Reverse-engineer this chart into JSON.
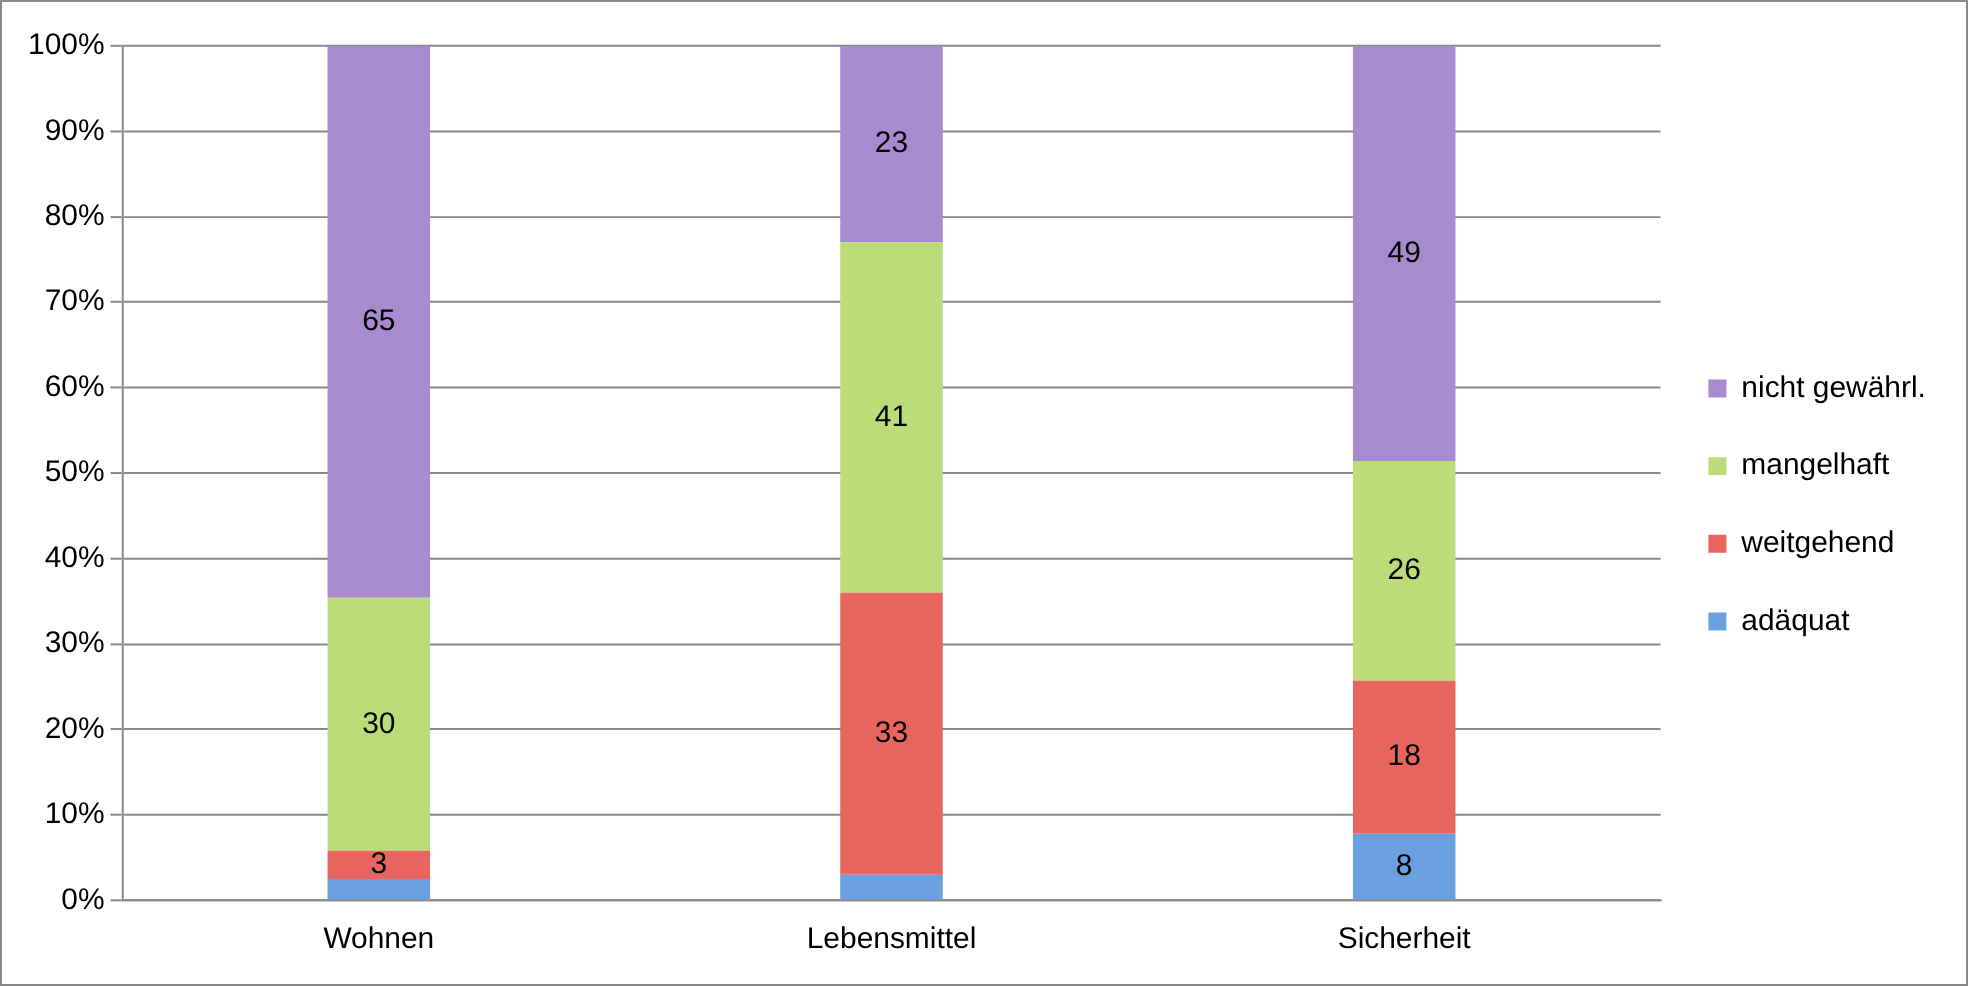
{
  "chart_data": {
    "type": "bar",
    "stacked": true,
    "categories": [
      "Wohnen",
      "Lebensmittel",
      "Sicherheit"
    ],
    "series": [
      {
        "name": "adäquat",
        "color": "#6aa0df",
        "values": [
          2.5,
          3,
          7.8
        ],
        "value_labels": [
          null,
          null,
          "8"
        ]
      },
      {
        "name": "weitgehend",
        "color": "#e8665f",
        "values": [
          3.3,
          33,
          17.9
        ],
        "value_labels": [
          "3",
          "33",
          "18"
        ]
      },
      {
        "name": "mangelhaft",
        "color": "#bcdc7a",
        "values": [
          29.6,
          41,
          25.7
        ],
        "value_labels": [
          "30",
          "41",
          "26"
        ]
      },
      {
        "name": "nicht gewährl.",
        "color": "#a88bce",
        "values": [
          64.6,
          23,
          48.6
        ],
        "value_labels": [
          "65",
          "23",
          "49"
        ]
      }
    ],
    "ylim": [
      0,
      100
    ],
    "yticks": [
      {
        "value": 0,
        "label": "0%"
      },
      {
        "value": 10,
        "label": "10%"
      },
      {
        "value": 20,
        "label": "20%"
      },
      {
        "value": 30,
        "label": "30%"
      },
      {
        "value": 40,
        "label": "40%"
      },
      {
        "value": 50,
        "label": "50%"
      },
      {
        "value": 60,
        "label": "60%"
      },
      {
        "value": 70,
        "label": "70%"
      },
      {
        "value": 80,
        "label": "80%"
      },
      {
        "value": 90,
        "label": "90%"
      },
      {
        "value": 100,
        "label": "100%"
      }
    ],
    "grid": "y",
    "legend": "right"
  }
}
